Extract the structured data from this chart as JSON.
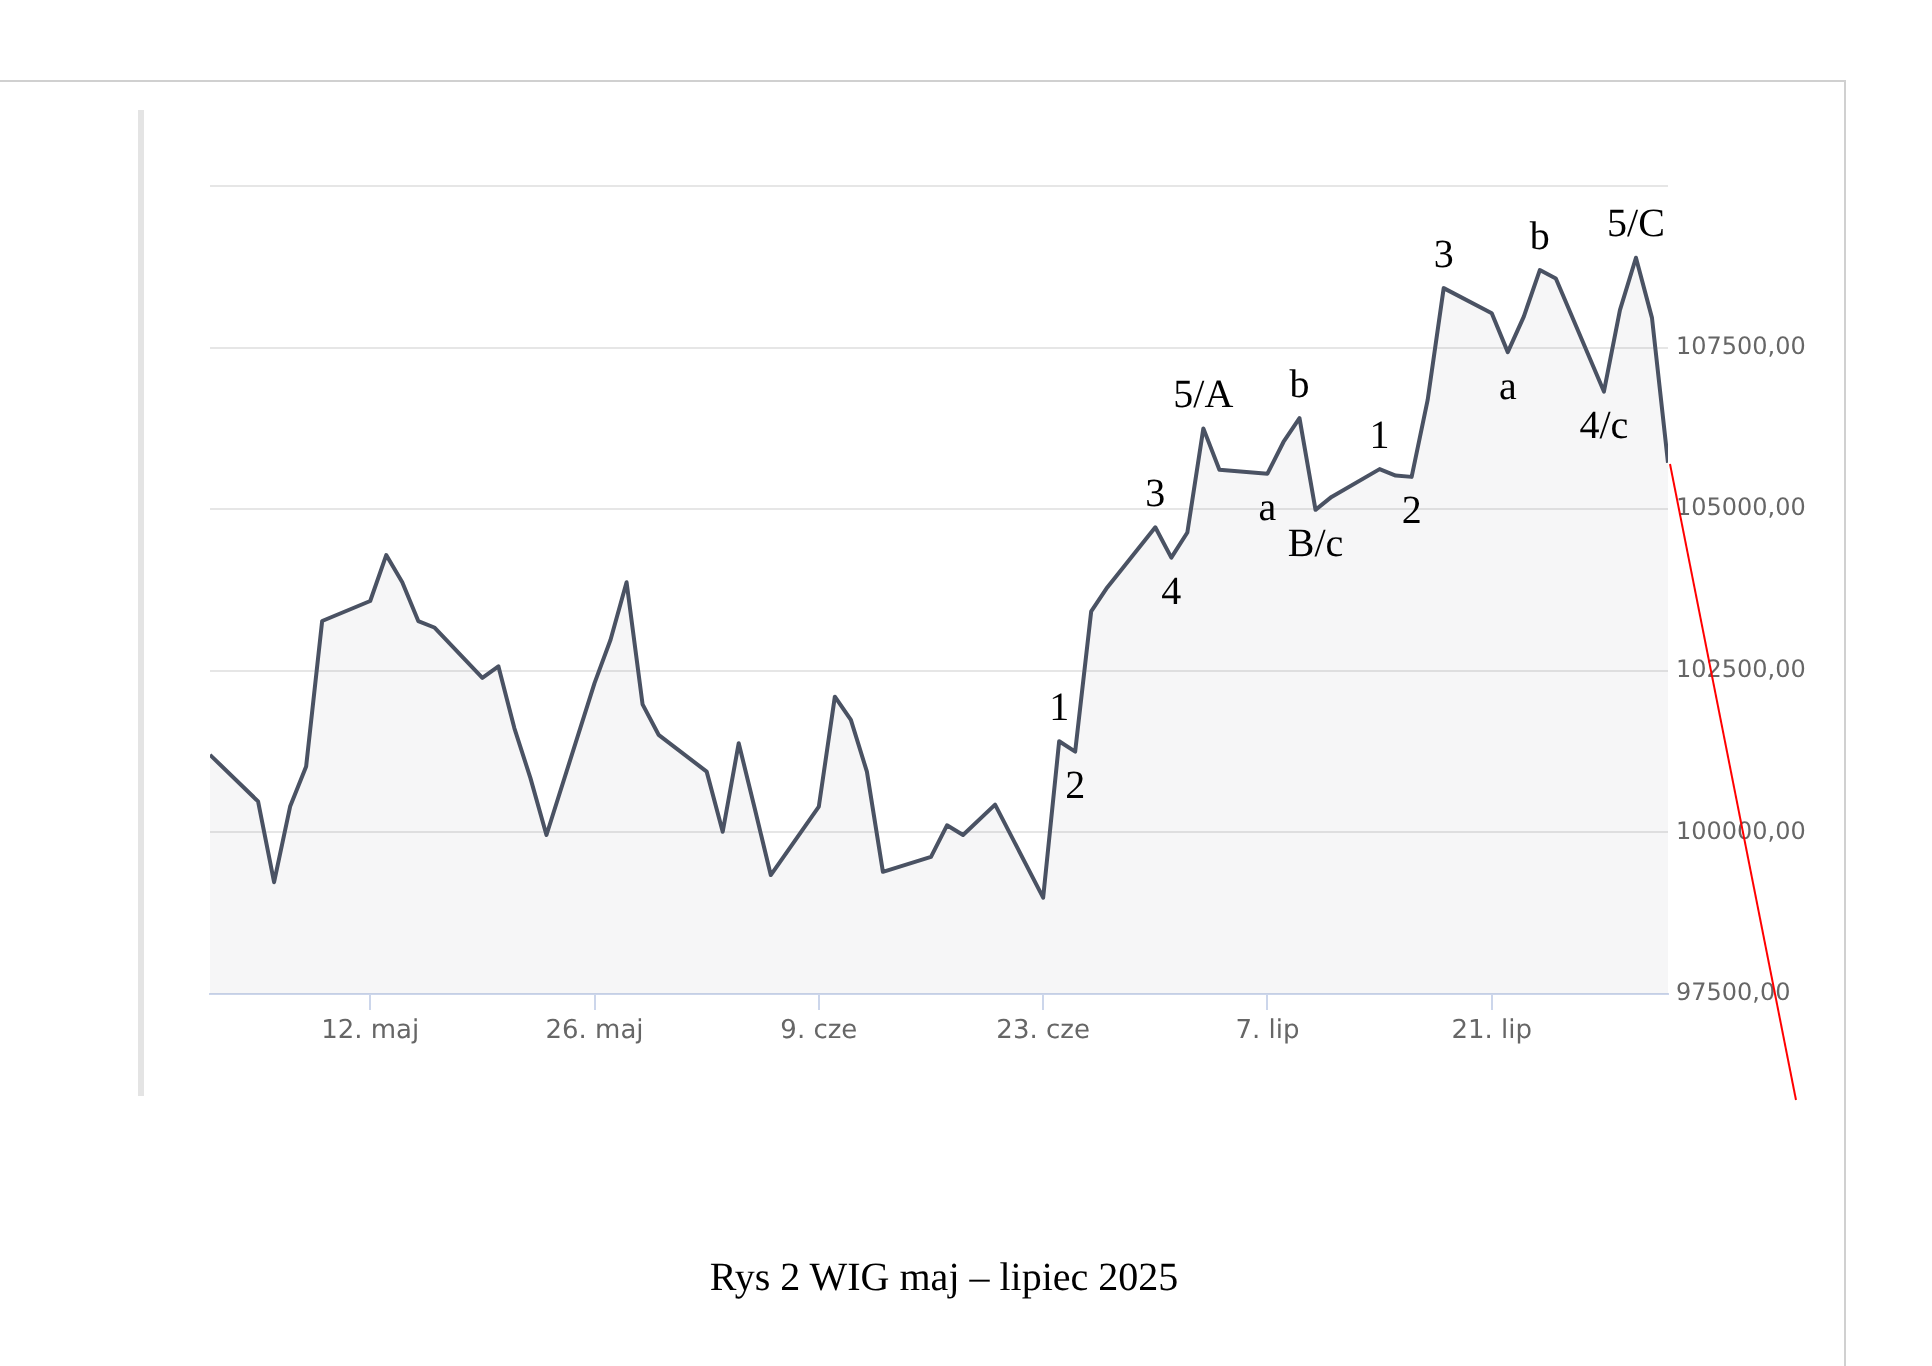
{
  "chart_data": {
    "type": "area",
    "x": [
      "2025-05-02",
      "2025-05-05",
      "2025-05-06",
      "2025-05-07",
      "2025-05-08",
      "2025-05-09",
      "2025-05-12",
      "2025-05-13",
      "2025-05-14",
      "2025-05-15",
      "2025-05-16",
      "2025-05-19",
      "2025-05-20",
      "2025-05-21",
      "2025-05-22",
      "2025-05-23",
      "2025-05-26",
      "2025-05-27",
      "2025-05-28",
      "2025-05-29",
      "2025-05-30",
      "2025-06-02",
      "2025-06-03",
      "2025-06-04",
      "2025-06-05",
      "2025-06-06",
      "2025-06-09",
      "2025-06-10",
      "2025-06-11",
      "2025-06-12",
      "2025-06-13",
      "2025-06-16",
      "2025-06-17",
      "2025-06-18",
      "2025-06-20",
      "2025-06-23",
      "2025-06-24",
      "2025-06-25",
      "2025-06-26",
      "2025-06-27",
      "2025-06-30",
      "2025-07-01",
      "2025-07-02",
      "2025-07-03",
      "2025-07-04",
      "2025-07-07",
      "2025-07-08",
      "2025-07-09",
      "2025-07-10",
      "2025-07-11",
      "2025-07-14",
      "2025-07-15",
      "2025-07-16",
      "2025-07-17",
      "2025-07-18",
      "2025-07-21",
      "2025-07-22",
      "2025-07-23",
      "2025-07-24",
      "2025-07-25",
      "2025-07-28",
      "2025-07-29",
      "2025-07-30",
      "2025-07-31",
      "2025-08-01"
    ],
    "series": [
      {
        "color": "#4a5263",
        "values": [
          101200,
          100480,
          99230,
          100400,
          101020,
          103270,
          103580,
          104290,
          103870,
          103270,
          103170,
          102390,
          102570,
          101610,
          100840,
          99960,
          102310,
          102980,
          103870,
          101980,
          101510,
          100940,
          100010,
          101380,
          100370,
          99340,
          100400,
          102100,
          101740,
          100940,
          99390,
          99620,
          100110,
          99960,
          100430,
          98990,
          101410,
          101250,
          103420,
          103790,
          104720,
          104250,
          104640,
          106250,
          105610,
          105550,
          106040,
          106410,
          104990,
          105190,
          105620,
          105520,
          105500,
          106690,
          108420,
          108030,
          107430,
          107980,
          108700,
          108570,
          106820,
          108080,
          108890,
          107960,
          105720
        ]
      }
    ],
    "xlim": [
      "2025-05-02",
      "2025-08-01"
    ],
    "xticks": [
      {
        "value": "2025-05-12",
        "label": "12. maj"
      },
      {
        "value": "2025-05-26",
        "label": "26. maj"
      },
      {
        "value": "2025-06-09",
        "label": "9. cze"
      },
      {
        "value": "2025-06-23",
        "label": "23. cze"
      },
      {
        "value": "2025-07-07",
        "label": "7. lip"
      },
      {
        "value": "2025-07-21",
        "label": "21. lip"
      }
    ],
    "ylim": [
      97500,
      110000
    ],
    "yticks": [
      {
        "value": 97500,
        "label": "97500,00"
      },
      {
        "value": 100000,
        "label": "100000,00"
      },
      {
        "value": 102500,
        "label": "102500,00"
      },
      {
        "value": 105000,
        "label": "105000,00"
      },
      {
        "value": 107500,
        "label": "107500,00"
      },
      {
        "value": 110000,
        "label": null
      }
    ],
    "grid": "y",
    "legend": false,
    "annotations": [
      {
        "text": "1",
        "x": "2025-06-24",
        "y": 101410
      },
      {
        "text": "2",
        "x": "2025-06-25",
        "y": 101250
      },
      {
        "text": "3",
        "x": "2025-06-30",
        "y": 104720
      },
      {
        "text": "4",
        "x": "2025-07-01",
        "y": 104250
      },
      {
        "text": "5/A",
        "x": "2025-07-03",
        "y": 106250
      },
      {
        "text": "a",
        "x": "2025-07-07",
        "y": 105550
      },
      {
        "text": "b",
        "x": "2025-07-09",
        "y": 106410
      },
      {
        "text": "B/c",
        "x": "2025-07-10",
        "y": 104990
      },
      {
        "text": "1",
        "x": "2025-07-14",
        "y": 105620
      },
      {
        "text": "2",
        "x": "2025-07-16",
        "y": 105500
      },
      {
        "text": "3",
        "x": "2025-07-18",
        "y": 108420
      },
      {
        "text": "a",
        "x": "2025-07-22",
        "y": 107430
      },
      {
        "text": "b",
        "x": "2025-07-24",
        "y": 108700
      },
      {
        "text": "4/c",
        "x": "2025-07-28",
        "y": 106820
      },
      {
        "text": "5/C",
        "x": "2025-07-30",
        "y": 108890
      },
      "Rys 2 WIG maj – lipiec 2025"
    ]
  }
}
